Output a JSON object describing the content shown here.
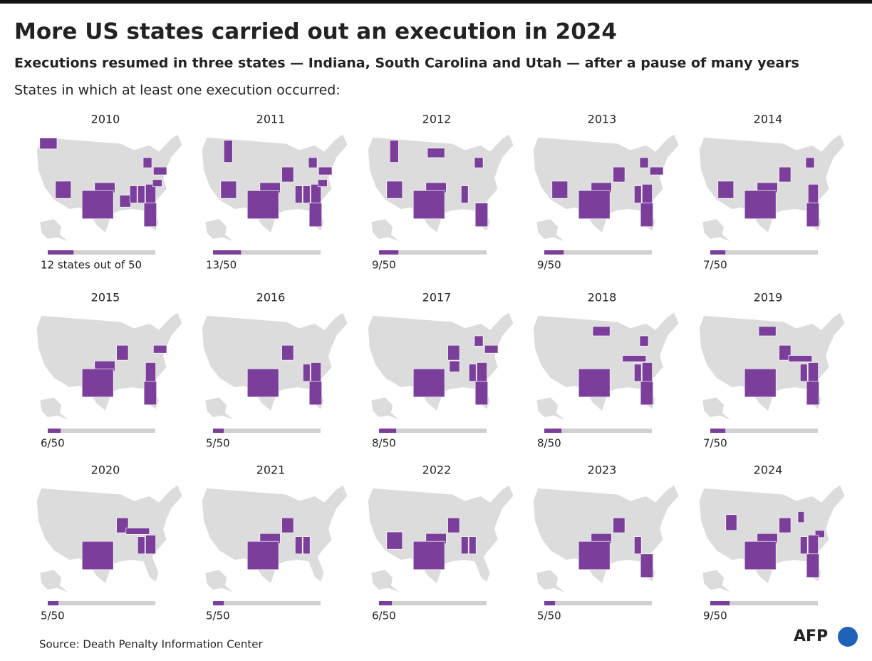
{
  "header": {
    "title": "More US states carried out an execution in 2024",
    "subtitle": "Executions resumed in three states — Indiana, South Carolina and Utah — after a pause of many years",
    "intro": "States in which at least one execution occurred:"
  },
  "total": 50,
  "panels": [
    {
      "year": "2010",
      "label": "12 states out of 50",
      "count": 12
    },
    {
      "year": "2011",
      "label": "13/50",
      "count": 13
    },
    {
      "year": "2012",
      "label": "9/50",
      "count": 9
    },
    {
      "year": "2013",
      "label": "9/50",
      "count": 9
    },
    {
      "year": "2014",
      "label": "7/50",
      "count": 7
    },
    {
      "year": "2015",
      "label": "6/50",
      "count": 6
    },
    {
      "year": "2016",
      "label": "5/50",
      "count": 5
    },
    {
      "year": "2017",
      "label": "8/50",
      "count": 8
    },
    {
      "year": "2018",
      "label": "8/50",
      "count": 8
    },
    {
      "year": "2019",
      "label": "7/50",
      "count": 7
    },
    {
      "year": "2020",
      "label": "5/50",
      "count": 5
    },
    {
      "year": "2021",
      "label": "5/50",
      "count": 5
    },
    {
      "year": "2022",
      "label": "6/50",
      "count": 6
    },
    {
      "year": "2023",
      "label": "5/50",
      "count": 5
    },
    {
      "year": "2024",
      "label": "9/50",
      "count": 9
    }
  ],
  "footer": {
    "source": "Source: Death Penalty Information Center",
    "logo": "AFP"
  }
}
